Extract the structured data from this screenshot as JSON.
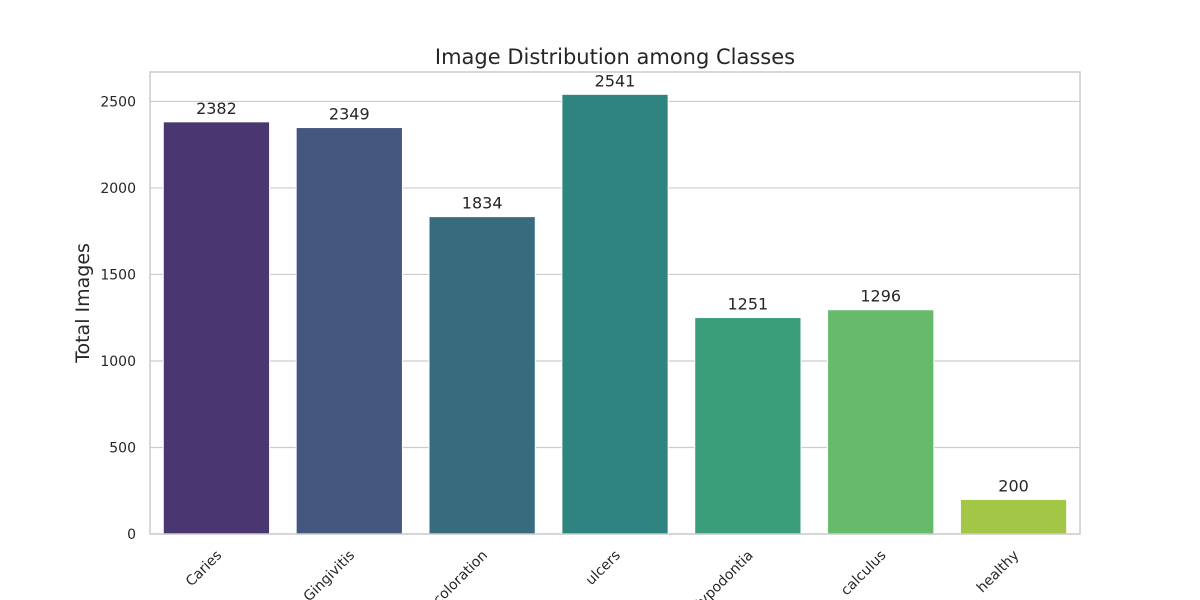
{
  "chart_data": {
    "type": "bar",
    "title": "Image Distribution among Classes",
    "xlabel": "",
    "ylabel": "Total Images",
    "categories": [
      "Caries",
      "Gingivitis",
      "Discoloration",
      "ulcers",
      "Hypodontia",
      "calculus",
      "healthy"
    ],
    "values": [
      2382,
      2349,
      1834,
      2541,
      1251,
      1296,
      200
    ],
    "ylim": [
      0,
      2670
    ],
    "yticks": [
      0,
      500,
      1000,
      1500,
      2000,
      2500
    ],
    "grid": true,
    "colors": [
      "#4a3671",
      "#44587f",
      "#366c7e",
      "#2f8480",
      "#3a9e7b",
      "#67ba6b",
      "#a3c647"
    ]
  }
}
